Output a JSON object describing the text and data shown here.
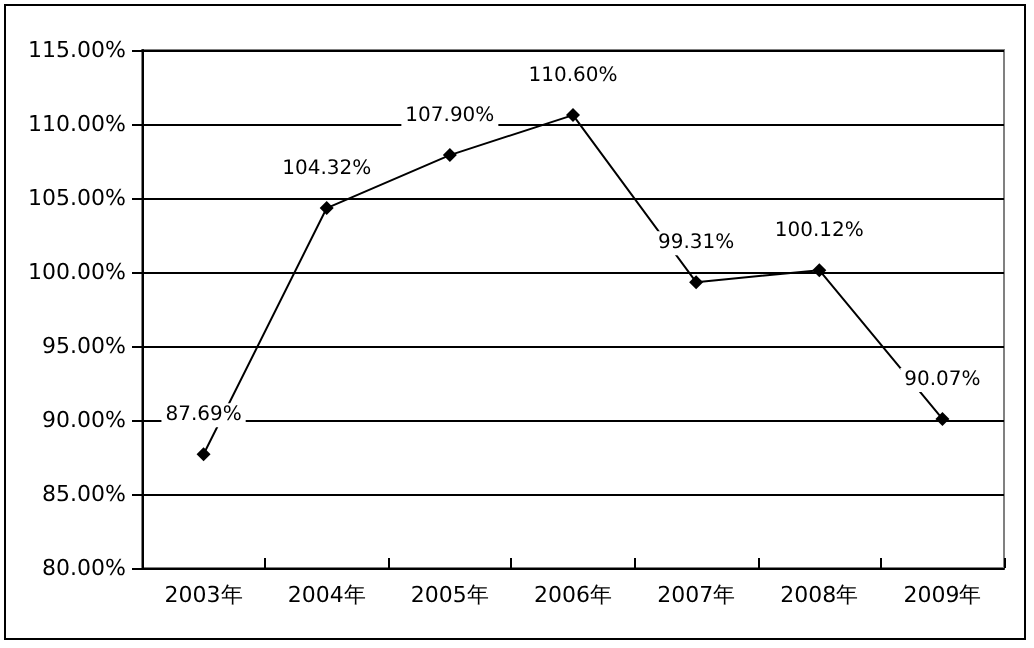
{
  "chart_data": {
    "type": "line",
    "categories": [
      "2003年",
      "2004年",
      "2005年",
      "2006年",
      "2007年",
      "2008年",
      "2009年"
    ],
    "series": [
      {
        "color": "#000000",
        "values": [
          87.69,
          104.32,
          107.9,
          110.6,
          99.31,
          100.12,
          90.07
        ],
        "value_labels": [
          "87.69%",
          "104.32%",
          "107.90%",
          "110.60%",
          "99.31%",
          "100.12%",
          "90.07%"
        ]
      }
    ],
    "ylim": [
      80,
      115
    ],
    "yticks": [
      {
        "value": 80,
        "label": "80.00%"
      },
      {
        "value": 85,
        "label": "85.00%"
      },
      {
        "value": 90,
        "label": "90.00%"
      },
      {
        "value": 95,
        "label": "95.00%"
      },
      {
        "value": 100,
        "label": "100.00%"
      },
      {
        "value": 105,
        "label": "105.00%"
      },
      {
        "value": 110,
        "label": "110.00%"
      },
      {
        "value": 115,
        "label": "115.00%"
      }
    ],
    "grid": "y",
    "marker": "diamond",
    "line_style": "solid"
  }
}
